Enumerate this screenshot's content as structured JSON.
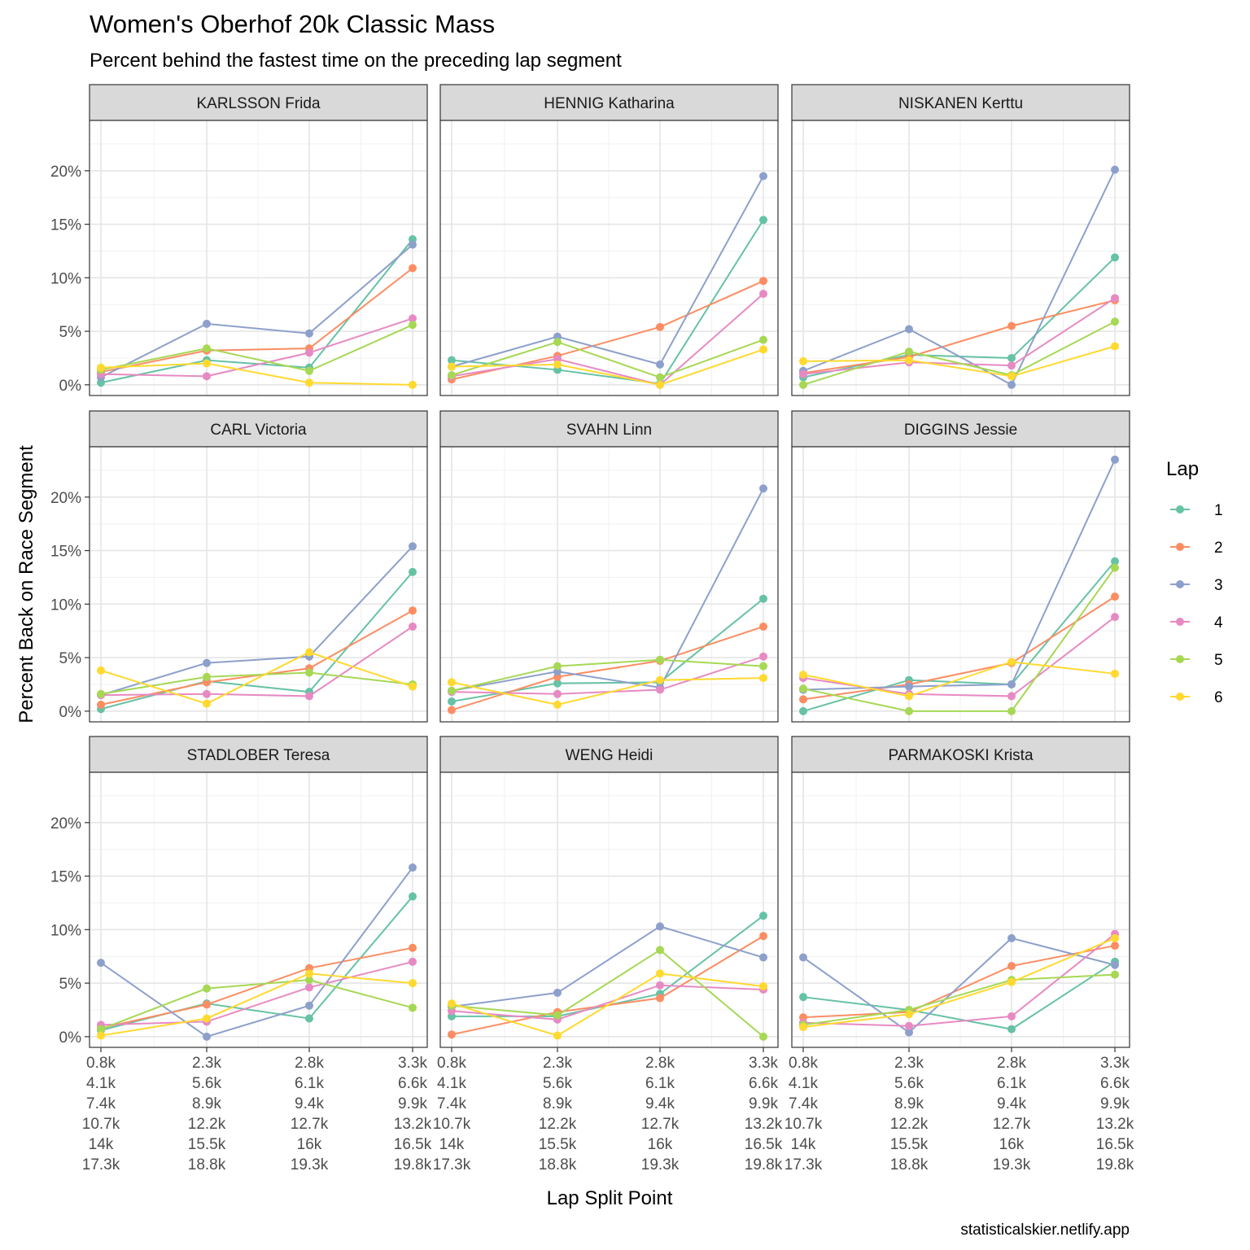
{
  "chart_data": {
    "type": "line",
    "title": "Women's Oberhof 20k Classic Mass",
    "subtitle": "Percent behind the fastest time on the preceding lap segment",
    "xlabel": "Lap Split Point",
    "ylabel": "Percent Back on Race Segment",
    "caption": "statisticalskier.netlify.app",
    "x_tick_labels": [
      [
        "0.8k",
        "4.1k",
        "7.4k",
        "10.7k",
        "14k",
        "17.3k"
      ],
      [
        "2.3k",
        "5.6k",
        "8.9k",
        "12.2k",
        "15.5k",
        "18.8k"
      ],
      [
        "2.8k",
        "6.1k",
        "9.4k",
        "12.7k",
        "16k",
        "19.3k"
      ],
      [
        "3.3k",
        "6.6k",
        "9.9k",
        "13.2k",
        "16.5k",
        "19.8k"
      ]
    ],
    "y_ticks": [
      0,
      5,
      10,
      15,
      20
    ],
    "y_tick_labels": [
      "0%",
      "5%",
      "10%",
      "15%",
      "20%"
    ],
    "ylim": [
      -1,
      24.7
    ],
    "legend": {
      "title": "Lap",
      "position": "right",
      "entries": [
        {
          "label": "1",
          "color": "#66C2A5"
        },
        {
          "label": "2",
          "color": "#FC8D62"
        },
        {
          "label": "3",
          "color": "#8DA0CB"
        },
        {
          "label": "4",
          "color": "#E78AC3"
        },
        {
          "label": "5",
          "color": "#A6D854"
        },
        {
          "label": "6",
          "color": "#FFD92F"
        }
      ]
    },
    "panels": [
      {
        "athlete": "KARLSSON Frida",
        "series": [
          {
            "lap": "1",
            "values": [
              0.2,
              2.3,
              1.6,
              13.6
            ]
          },
          {
            "lap": "2",
            "values": [
              1.2,
              3.2,
              3.4,
              10.9
            ]
          },
          {
            "lap": "3",
            "values": [
              0.7,
              5.7,
              4.8,
              13.1
            ]
          },
          {
            "lap": "4",
            "values": [
              1.0,
              0.8,
              3.0,
              6.2
            ]
          },
          {
            "lap": "5",
            "values": [
              1.4,
              3.4,
              1.3,
              5.6
            ]
          },
          {
            "lap": "6",
            "values": [
              1.6,
              2.0,
              0.2,
              0.0
            ]
          }
        ]
      },
      {
        "athlete": "HENNIG Katharina",
        "series": [
          {
            "lap": "1",
            "values": [
              2.3,
              1.4,
              0.1,
              15.4
            ]
          },
          {
            "lap": "2",
            "values": [
              0.5,
              2.7,
              5.4,
              9.7
            ]
          },
          {
            "lap": "3",
            "values": [
              1.7,
              4.5,
              1.9,
              19.5
            ]
          },
          {
            "lap": "4",
            "values": [
              0.8,
              2.4,
              0.0,
              8.5
            ]
          },
          {
            "lap": "5",
            "values": [
              0.9,
              4.0,
              0.7,
              4.2
            ]
          },
          {
            "lap": "6",
            "values": [
              1.7,
              1.9,
              0.0,
              3.3
            ]
          }
        ]
      },
      {
        "athlete": "NISKANEN Kerttu",
        "series": [
          {
            "lap": "1",
            "values": [
              0.7,
              2.8,
              2.5,
              11.9
            ]
          },
          {
            "lap": "2",
            "values": [
              1.1,
              2.6,
              5.5,
              7.9
            ]
          },
          {
            "lap": "3",
            "values": [
              1.3,
              5.2,
              0.0,
              20.1
            ]
          },
          {
            "lap": "4",
            "values": [
              1.0,
              2.1,
              1.8,
              8.1
            ]
          },
          {
            "lap": "5",
            "values": [
              0.0,
              3.1,
              0.9,
              5.9
            ]
          },
          {
            "lap": "6",
            "values": [
              2.2,
              2.3,
              0.8,
              3.6
            ]
          }
        ]
      },
      {
        "athlete": "CARL Victoria",
        "series": [
          {
            "lap": "1",
            "values": [
              0.2,
              2.8,
              1.8,
              13.0
            ]
          },
          {
            "lap": "2",
            "values": [
              0.6,
              2.7,
              4.0,
              9.4
            ]
          },
          {
            "lap": "3",
            "values": [
              1.5,
              4.5,
              5.1,
              15.4
            ]
          },
          {
            "lap": "4",
            "values": [
              1.5,
              1.6,
              1.4,
              7.9
            ]
          },
          {
            "lap": "5",
            "values": [
              1.6,
              3.2,
              3.6,
              2.5
            ]
          },
          {
            "lap": "6",
            "values": [
              3.8,
              0.7,
              5.5,
              2.3
            ]
          }
        ]
      },
      {
        "athlete": "SVAHN Linn",
        "series": [
          {
            "lap": "1",
            "values": [
              0.9,
              2.6,
              2.7,
              10.5
            ]
          },
          {
            "lap": "2",
            "values": [
              0.1,
              3.2,
              4.7,
              7.9
            ]
          },
          {
            "lap": "3",
            "values": [
              1.9,
              3.7,
              2.2,
              20.8
            ]
          },
          {
            "lap": "4",
            "values": [
              1.8,
              1.6,
              2.0,
              5.1
            ]
          },
          {
            "lap": "5",
            "values": [
              1.9,
              4.2,
              4.8,
              4.2
            ]
          },
          {
            "lap": "6",
            "values": [
              2.7,
              0.6,
              2.9,
              3.1
            ]
          }
        ]
      },
      {
        "athlete": "DIGGINS Jessie",
        "series": [
          {
            "lap": "1",
            "values": [
              0.0,
              2.9,
              2.5,
              14.0
            ]
          },
          {
            "lap": "2",
            "values": [
              1.1,
              2.5,
              4.5,
              10.7
            ]
          },
          {
            "lap": "3",
            "values": [
              2.0,
              2.3,
              2.5,
              23.5
            ]
          },
          {
            "lap": "4",
            "values": [
              3.1,
              1.6,
              1.4,
              8.8
            ]
          },
          {
            "lap": "5",
            "values": [
              2.1,
              0.0,
              0.0,
              13.4
            ]
          },
          {
            "lap": "6",
            "values": [
              3.4,
              1.4,
              4.6,
              3.5
            ]
          }
        ]
      },
      {
        "athlete": "STADLOBER Teresa",
        "series": [
          {
            "lap": "1",
            "values": [
              0.6,
              3.1,
              1.7,
              13.1
            ]
          },
          {
            "lap": "2",
            "values": [
              0.8,
              3.0,
              6.4,
              8.3
            ]
          },
          {
            "lap": "3",
            "values": [
              6.9,
              0.0,
              2.9,
              15.8
            ]
          },
          {
            "lap": "4",
            "values": [
              1.1,
              1.4,
              4.6,
              7.0
            ]
          },
          {
            "lap": "5",
            "values": [
              0.7,
              4.5,
              5.3,
              2.7
            ]
          },
          {
            "lap": "6",
            "values": [
              0.1,
              1.7,
              5.9,
              5.0
            ]
          }
        ]
      },
      {
        "athlete": "WENG Heidi",
        "series": [
          {
            "lap": "1",
            "values": [
              1.9,
              1.9,
              4.0,
              11.3
            ]
          },
          {
            "lap": "2",
            "values": [
              0.2,
              2.3,
              3.6,
              9.4
            ]
          },
          {
            "lap": "3",
            "values": [
              2.8,
              4.1,
              10.3,
              7.4
            ]
          },
          {
            "lap": "4",
            "values": [
              2.4,
              1.6,
              4.8,
              4.4
            ]
          },
          {
            "lap": "5",
            "values": [
              2.9,
              2.0,
              8.1,
              0.0
            ]
          },
          {
            "lap": "6",
            "values": [
              3.1,
              0.1,
              5.9,
              4.7
            ]
          }
        ]
      },
      {
        "athlete": "PARMAKOSKI Krista",
        "series": [
          {
            "lap": "1",
            "values": [
              3.7,
              2.5,
              0.7,
              7.0
            ]
          },
          {
            "lap": "2",
            "values": [
              1.8,
              2.3,
              6.6,
              8.5
            ]
          },
          {
            "lap": "3",
            "values": [
              7.4,
              0.4,
              9.2,
              6.7
            ]
          },
          {
            "lap": "4",
            "values": [
              1.3,
              1.0,
              1.9,
              9.6
            ]
          },
          {
            "lap": "5",
            "values": [
              1.1,
              2.5,
              5.3,
              5.8
            ]
          },
          {
            "lap": "6",
            "values": [
              0.9,
              2.1,
              5.1,
              9.2
            ]
          }
        ]
      }
    ]
  }
}
